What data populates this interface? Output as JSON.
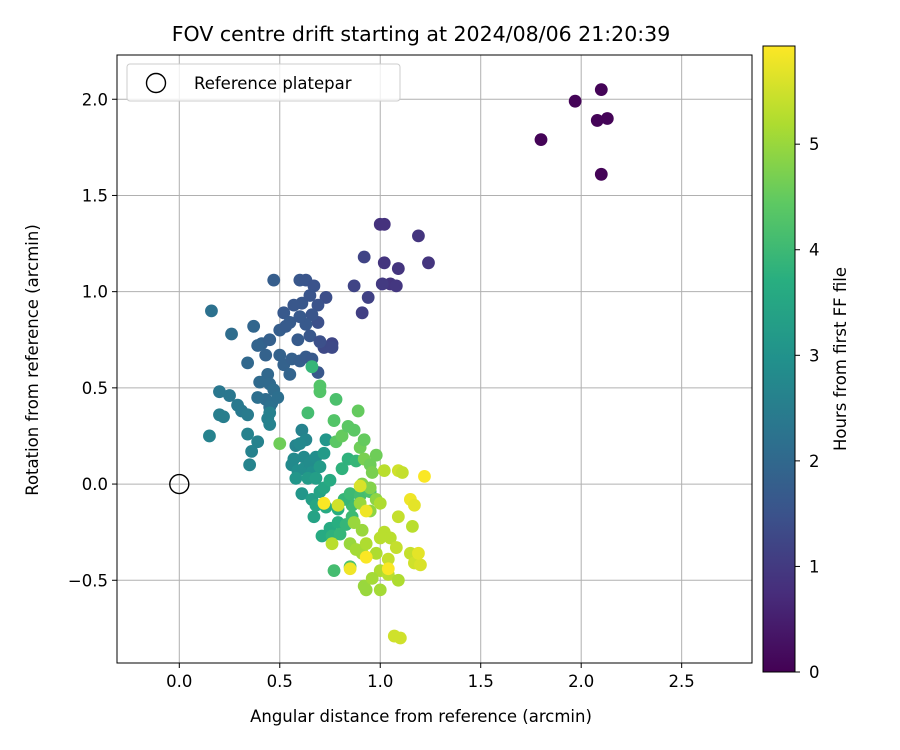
{
  "chart_data": {
    "type": "scatter",
    "title": "FOV centre drift starting at 2024/08/06 21:20:39",
    "xlabel": "Angular distance from reference (arcmin)",
    "ylabel": "Rotation from reference (arcmin)",
    "xlim": [
      -0.31,
      2.85
    ],
    "ylim": [
      -0.93,
      2.23
    ],
    "xticks": [
      0.0,
      0.5,
      1.0,
      1.5,
      2.0,
      2.5
    ],
    "xtick_labels": [
      "0.0",
      "0.5",
      "1.0",
      "1.5",
      "2.0",
      "2.5"
    ],
    "yticks": [
      -0.5,
      0.0,
      0.5,
      1.0,
      1.5,
      2.0
    ],
    "ytick_labels": [
      "−0.5",
      "0.0",
      "0.5",
      "1.0",
      "1.5",
      "2.0"
    ],
    "grid": true,
    "legend": {
      "placement": "top-left",
      "entries": [
        "Reference platepar"
      ]
    },
    "reference": {
      "name": "Reference platepar",
      "x": 0.0,
      "y": 0.0
    },
    "colorbar": {
      "label": "Hours from first FF file",
      "colormap": "viridis",
      "range": [
        0,
        5.93
      ],
      "ticks": [
        0,
        1,
        2,
        3,
        4,
        5
      ],
      "tick_labels": [
        "0",
        "1",
        "2",
        "3",
        "4",
        "5"
      ]
    },
    "points": [
      [
        1.8,
        1.79,
        0.05
      ],
      [
        1.97,
        1.99,
        0.05
      ],
      [
        2.1,
        2.05,
        0.05
      ],
      [
        2.08,
        1.89,
        0.05
      ],
      [
        2.13,
        1.9,
        0.05
      ],
      [
        2.1,
        1.61,
        0.05
      ],
      [
        1.0,
        1.35,
        0.85
      ],
      [
        1.02,
        1.35,
        0.85
      ],
      [
        1.19,
        1.29,
        0.9
      ],
      [
        1.24,
        1.15,
        0.9
      ],
      [
        1.02,
        1.15,
        0.9
      ],
      [
        1.09,
        1.12,
        0.9
      ],
      [
        1.05,
        1.04,
        0.9
      ],
      [
        1.08,
        1.03,
        0.95
      ],
      [
        1.01,
        1.04,
        1.0
      ],
      [
        0.92,
        1.18,
        1.2
      ],
      [
        0.87,
        1.03,
        1.2
      ],
      [
        0.94,
        0.97,
        1.15
      ],
      [
        0.91,
        0.89,
        1.1
      ],
      [
        0.76,
        0.73,
        1.25
      ],
      [
        0.72,
        0.71,
        1.3
      ],
      [
        0.69,
        0.84,
        1.45
      ],
      [
        0.73,
        0.97,
        1.4
      ],
      [
        0.6,
        1.06,
        1.6
      ],
      [
        0.63,
        1.06,
        1.55
      ],
      [
        0.67,
        1.03,
        1.5
      ],
      [
        0.61,
        0.94,
        1.6
      ],
      [
        0.65,
        0.98,
        1.55
      ],
      [
        0.69,
        0.93,
        1.5
      ],
      [
        0.57,
        0.93,
        1.6
      ],
      [
        0.52,
        0.89,
        1.65
      ],
      [
        0.55,
        0.84,
        1.7
      ],
      [
        0.66,
        0.88,
        1.55
      ],
      [
        0.63,
        0.83,
        1.65
      ],
      [
        0.5,
        0.8,
        1.75
      ],
      [
        0.53,
        0.82,
        1.7
      ],
      [
        0.6,
        0.87,
        1.65
      ],
      [
        0.65,
        0.77,
        1.6
      ],
      [
        0.59,
        0.75,
        1.7
      ],
      [
        0.7,
        0.74,
        1.45
      ],
      [
        0.76,
        0.71,
        1.3
      ],
      [
        0.47,
        1.06,
        1.75
      ],
      [
        0.41,
        0.73,
        1.85
      ],
      [
        0.45,
        0.75,
        1.8
      ],
      [
        0.39,
        0.72,
        1.9
      ],
      [
        0.43,
        0.67,
        1.85
      ],
      [
        0.5,
        0.67,
        1.85
      ],
      [
        0.52,
        0.62,
        1.85
      ],
      [
        0.56,
        0.65,
        1.8
      ],
      [
        0.6,
        0.64,
        1.75
      ],
      [
        0.63,
        0.66,
        1.7
      ],
      [
        0.66,
        0.65,
        1.65
      ],
      [
        0.69,
        0.58,
        1.6
      ],
      [
        0.55,
        0.57,
        1.9
      ],
      [
        0.44,
        0.57,
        2.0
      ],
      [
        0.4,
        0.53,
        2.05
      ],
      [
        0.45,
        0.52,
        2.05
      ],
      [
        0.47,
        0.49,
        2.1
      ],
      [
        0.43,
        0.44,
        2.1
      ],
      [
        0.46,
        0.42,
        2.15
      ],
      [
        0.49,
        0.45,
        2.15
      ],
      [
        0.45,
        0.4,
        2.2
      ],
      [
        0.39,
        0.45,
        2.15
      ],
      [
        0.37,
        0.82,
        1.95
      ],
      [
        0.26,
        0.78,
        2.1
      ],
      [
        0.34,
        0.63,
        2.0
      ],
      [
        0.16,
        0.9,
        2.2
      ],
      [
        0.2,
        0.48,
        2.35
      ],
      [
        0.25,
        0.46,
        2.35
      ],
      [
        0.29,
        0.41,
        2.4
      ],
      [
        0.31,
        0.38,
        2.4
      ],
      [
        0.34,
        0.36,
        2.45
      ],
      [
        0.2,
        0.36,
        2.5
      ],
      [
        0.22,
        0.35,
        2.5
      ],
      [
        0.34,
        0.26,
        2.6
      ],
      [
        0.39,
        0.22,
        2.6
      ],
      [
        0.36,
        0.17,
        2.6
      ],
      [
        0.35,
        0.1,
        2.65
      ],
      [
        0.15,
        0.25,
        2.6
      ],
      [
        0.45,
        0.37,
        2.55
      ],
      [
        0.44,
        0.34,
        2.55
      ],
      [
        0.45,
        0.31,
        2.6
      ],
      [
        0.58,
        0.2,
        2.65
      ],
      [
        0.61,
        0.28,
        2.6
      ],
      [
        0.63,
        0.23,
        2.7
      ],
      [
        0.6,
        0.21,
        2.75
      ],
      [
        0.62,
        0.14,
        2.8
      ],
      [
        0.57,
        0.13,
        2.8
      ],
      [
        0.62,
        0.08,
        2.9
      ],
      [
        0.65,
        0.11,
        2.85
      ],
      [
        0.68,
        0.14,
        2.9
      ],
      [
        0.66,
        0.06,
        2.95
      ],
      [
        0.56,
        0.1,
        2.8
      ],
      [
        0.59,
        0.07,
        2.9
      ],
      [
        0.58,
        0.03,
        3.1
      ],
      [
        0.61,
        -0.05,
        3.1
      ],
      [
        0.64,
        0.03,
        3.2
      ],
      [
        0.68,
        0.03,
        3.3
      ],
      [
        0.7,
        0.09,
        3.2
      ],
      [
        0.72,
        0.16,
        3.2
      ],
      [
        0.73,
        0.23,
        3.1
      ],
      [
        0.66,
        -0.08,
        3.3
      ],
      [
        0.7,
        -0.04,
        3.4
      ],
      [
        0.72,
        -0.02,
        3.5
      ],
      [
        0.75,
        0.02,
        3.6
      ],
      [
        0.67,
        -0.17,
        3.4
      ],
      [
        0.68,
        -0.11,
        3.5
      ],
      [
        0.73,
        -0.12,
        3.6
      ],
      [
        0.71,
        -0.27,
        3.6
      ],
      [
        0.75,
        -0.23,
        3.6
      ],
      [
        0.79,
        -0.2,
        3.7
      ],
      [
        0.79,
        -0.13,
        3.7
      ],
      [
        0.76,
        -0.27,
        3.8
      ],
      [
        0.8,
        -0.26,
        3.9
      ],
      [
        0.83,
        -0.21,
        3.9
      ],
      [
        0.86,
        -0.17,
        4.0
      ],
      [
        0.86,
        -0.11,
        4.0
      ],
      [
        0.82,
        -0.08,
        3.9
      ],
      [
        0.85,
        -0.05,
        4.0
      ],
      [
        0.9,
        -0.06,
        4.1
      ],
      [
        0.95,
        -0.04,
        4.2
      ],
      [
        0.77,
        -0.45,
        4.1
      ],
      [
        0.85,
        -0.43,
        4.2
      ],
      [
        0.81,
        0.08,
        3.8
      ],
      [
        0.84,
        0.13,
        3.8
      ],
      [
        0.88,
        0.12,
        3.9
      ],
      [
        0.64,
        0.37,
        4.1
      ],
      [
        0.66,
        0.61,
        3.9
      ],
      [
        0.7,
        0.51,
        4.3
      ],
      [
        0.7,
        0.48,
        4.3
      ],
      [
        0.78,
        0.44,
        4.2
      ],
      [
        0.77,
        0.33,
        4.3
      ],
      [
        0.78,
        0.22,
        4.4
      ],
      [
        0.81,
        0.25,
        4.5
      ],
      [
        0.84,
        0.3,
        4.4
      ],
      [
        0.87,
        0.28,
        4.4
      ],
      [
        0.89,
        0.38,
        4.5
      ],
      [
        0.9,
        0.19,
        4.6
      ],
      [
        0.92,
        0.23,
        4.5
      ],
      [
        0.98,
        0.15,
        4.6
      ],
      [
        0.92,
        0.13,
        4.7
      ],
      [
        0.95,
        0.1,
        4.6
      ],
      [
        0.96,
        0.06,
        4.7
      ],
      [
        0.91,
        0.0,
        4.8
      ],
      [
        0.95,
        -0.02,
        4.8
      ],
      [
        0.98,
        -0.08,
        4.9
      ],
      [
        0.9,
        -0.1,
        5.0
      ],
      [
        0.95,
        -0.14,
        4.9
      ],
      [
        0.87,
        -0.2,
        5.0
      ],
      [
        0.91,
        -0.24,
        5.0
      ],
      [
        0.85,
        -0.31,
        5.0
      ],
      [
        0.88,
        -0.34,
        5.1
      ],
      [
        0.91,
        -0.36,
        5.1
      ],
      [
        0.93,
        -0.31,
        5.2
      ],
      [
        0.98,
        -0.36,
        5.2
      ],
      [
        1.0,
        -0.28,
        5.3
      ],
      [
        1.02,
        -0.25,
        5.3
      ],
      [
        1.05,
        -0.28,
        5.3
      ],
      [
        1.08,
        -0.33,
        5.4
      ],
      [
        1.04,
        -0.39,
        5.4
      ],
      [
        1.0,
        -0.45,
        5.2
      ],
      [
        1.04,
        -0.47,
        5.3
      ],
      [
        1.09,
        -0.5,
        5.2
      ],
      [
        1.0,
        -0.55,
        5.1
      ],
      [
        0.92,
        -0.53,
        5.0
      ],
      [
        0.93,
        -0.55,
        5.0
      ],
      [
        0.96,
        -0.49,
        5.1
      ],
      [
        1.0,
        -0.1,
        5.2
      ],
      [
        1.02,
        0.07,
        5.3
      ],
      [
        1.09,
        0.07,
        5.5
      ],
      [
        1.11,
        0.06,
        5.4
      ],
      [
        1.09,
        -0.17,
        5.4
      ],
      [
        1.16,
        -0.22,
        5.3
      ],
      [
        1.15,
        -0.36,
        5.4
      ],
      [
        1.17,
        -0.41,
        5.5
      ],
      [
        1.2,
        -0.42,
        5.6
      ],
      [
        1.19,
        -0.36,
        5.7
      ],
      [
        1.15,
        -0.08,
        5.8
      ],
      [
        1.17,
        -0.11,
        5.7
      ],
      [
        1.22,
        0.04,
        5.9
      ],
      [
        1.07,
        -0.79,
        5.5
      ],
      [
        1.1,
        -0.8,
        5.5
      ],
      [
        0.72,
        -0.1,
        5.9
      ],
      [
        0.9,
        -0.01,
        5.6
      ],
      [
        0.93,
        -0.14,
        5.8
      ],
      [
        0.93,
        -0.38,
        5.9
      ],
      [
        0.85,
        -0.44,
        5.8
      ],
      [
        1.04,
        -0.44,
        5.9
      ],
      [
        0.79,
        -0.11,
        5.5
      ],
      [
        0.76,
        -0.31,
        5.3
      ],
      [
        0.5,
        0.21,
        4.6
      ]
    ]
  }
}
